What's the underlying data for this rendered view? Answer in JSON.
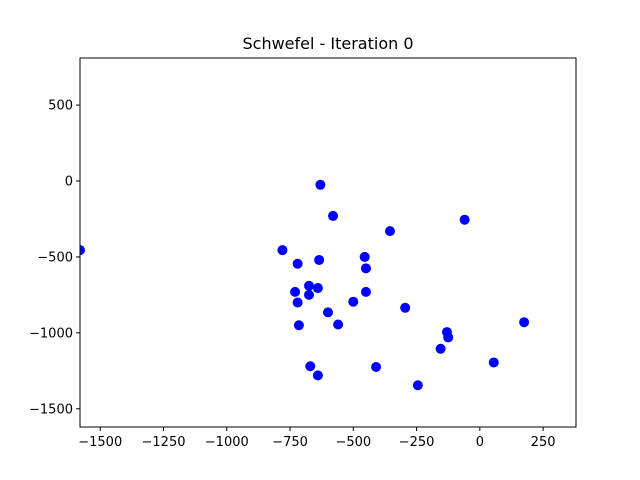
{
  "chart_data": {
    "type": "scatter",
    "title": "Schwefel - Iteration 0",
    "xlabel": "",
    "ylabel": "",
    "xlim": [
      -1580,
      380
    ],
    "ylim": [
      -1620,
      810
    ],
    "x_ticks": [
      -1500,
      -1250,
      -1000,
      -750,
      -500,
      -250,
      0,
      250
    ],
    "x_tick_labels": [
      "−1500",
      "−1250",
      "−1000",
      "−750",
      "−500",
      "−250",
      "0",
      "250"
    ],
    "y_ticks": [
      500,
      0,
      -500,
      -1000,
      -1500
    ],
    "y_tick_labels": [
      "500",
      "0",
      "−500",
      "−1000",
      "−1500"
    ],
    "grid": false,
    "colors": {
      "points": "#0000ff"
    },
    "series": [
      {
        "x": [
          -1580,
          -630,
          -580,
          -355,
          -60,
          -780,
          -720,
          -635,
          -455,
          -450,
          -675,
          -730,
          -640,
          -675,
          -720,
          -450,
          -500,
          -600,
          -715,
          -560,
          -295,
          -130,
          -125,
          -155,
          175,
          -670,
          -640,
          -410,
          -245,
          55
        ],
        "y": [
          -455,
          -25,
          -230,
          -330,
          -255,
          -455,
          -545,
          -520,
          -500,
          -575,
          -690,
          -730,
          -705,
          -750,
          -800,
          -730,
          -795,
          -865,
          -950,
          -945,
          -835,
          -995,
          -1030,
          -1105,
          -930,
          -1220,
          -1280,
          -1225,
          -1345,
          -1195
        ]
      }
    ]
  }
}
